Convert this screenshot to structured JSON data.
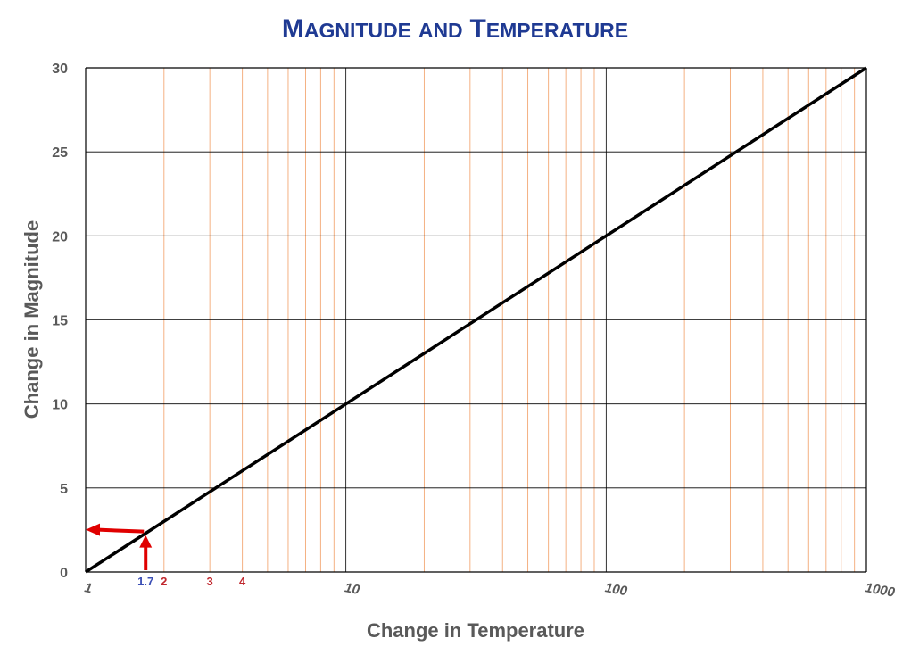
{
  "chart_data": {
    "type": "line",
    "title": "Magnitude and Temperature",
    "xlabel": "Change in Temperature",
    "ylabel": "Change in Magnitude",
    "x_scale": "log",
    "xlim": [
      1,
      1000
    ],
    "ylim": [
      0,
      30
    ],
    "x_ticks": [
      1,
      10,
      100,
      1000
    ],
    "x_tick_labels": [
      "1",
      "10",
      "100",
      "1000"
    ],
    "y_ticks": [
      0,
      5,
      10,
      15,
      20,
      25,
      30
    ],
    "y_tick_labels": [
      "0",
      "5",
      "10",
      "15",
      "20",
      "25",
      "30"
    ],
    "grid": true,
    "series": [
      {
        "x": [
          1,
          1000
        ],
        "y": [
          0,
          30
        ]
      }
    ],
    "annotations": [
      {
        "text": "1.7",
        "x": 1.7,
        "color": "#3a4db5"
      },
      {
        "text": "2",
        "x": 2,
        "color": "#c0272d"
      },
      {
        "text": "3",
        "x": 3,
        "color": "#c0272d"
      },
      {
        "text": "4",
        "x": 4,
        "color": "#c0272d"
      }
    ],
    "highlight_point": {
      "x": 1.7,
      "y": 2.3
    },
    "colors": {
      "title": "#1f3a93",
      "line": "#000000",
      "major_grid": "#000000",
      "minor_grid": "#f4b183",
      "arrow": "#e00000",
      "axis_text": "#595959"
    }
  }
}
